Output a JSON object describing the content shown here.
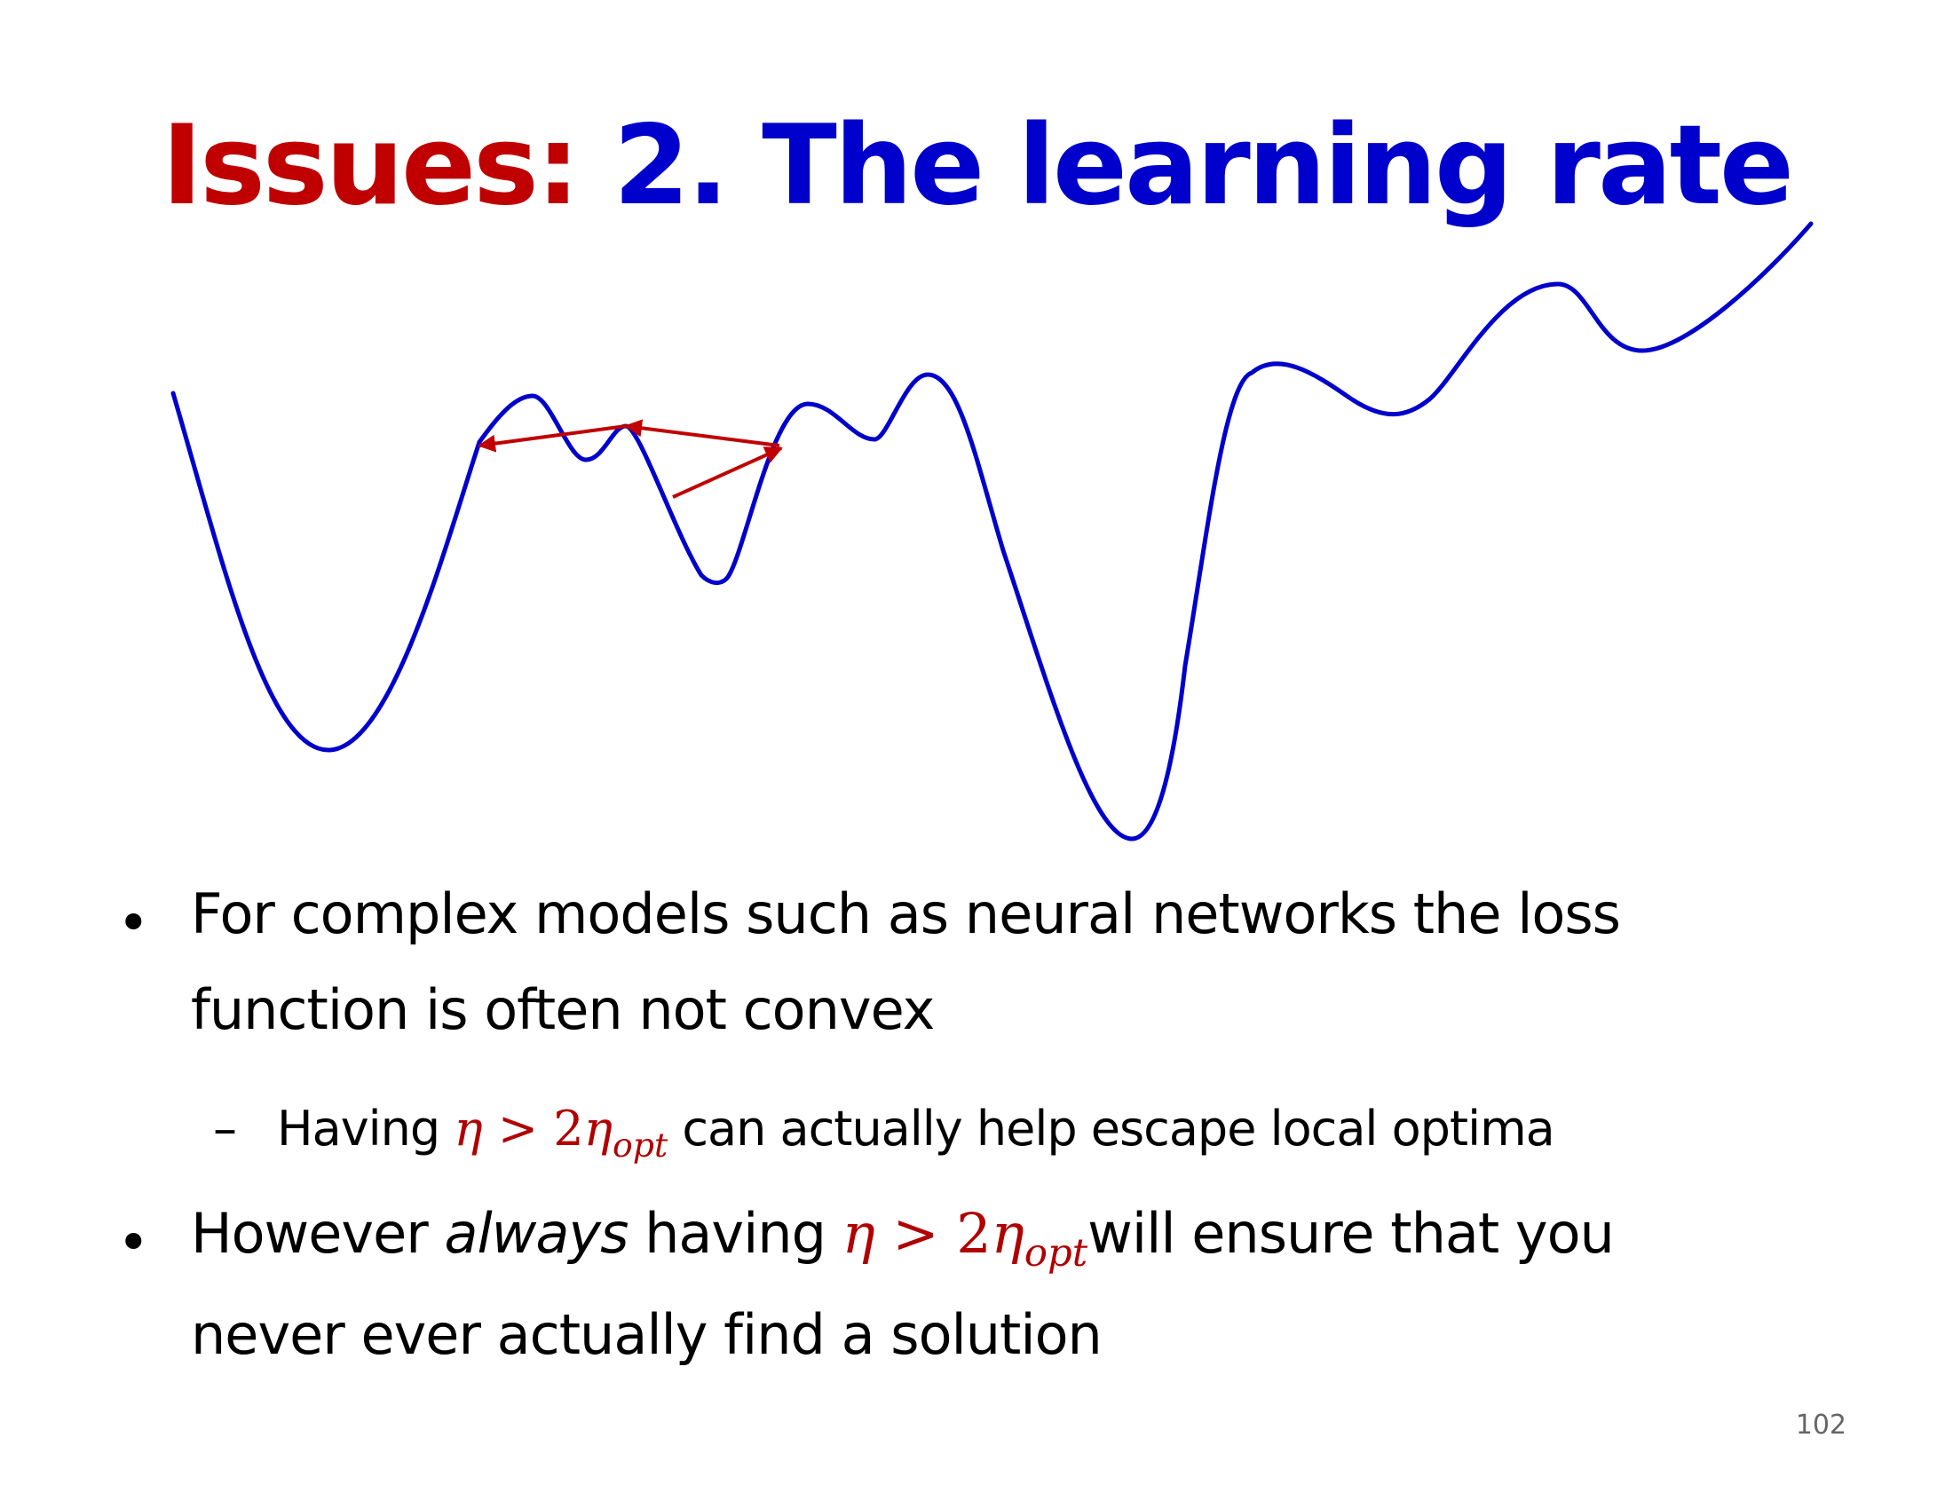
{
  "slide": {
    "title": {
      "prefix": "Issues:",
      "main": "2.  The learning rate"
    },
    "colors": {
      "title_prefix": "#c00000",
      "title_main": "#0000cc",
      "curve": "#0000cc",
      "arrows": "#c00000",
      "math": "#b00000"
    },
    "illustration": {
      "curve_icon": "non-convex-loss-curve",
      "arrow_icon": "red-step-arrows"
    },
    "bullets": [
      {
        "line1": "For complex models such as neural networks the loss",
        "line2": "function is often not convex",
        "sub": {
          "before": "Having",
          "math": {
            "eta": "η",
            "gt": ">",
            "two": "2",
            "eta2": "η",
            "subscript": "opt"
          },
          "after": "can actually help escape local optima"
        }
      },
      {
        "before": "However",
        "emph": "always",
        "mid": "having",
        "math": {
          "eta": "η",
          "gt": ">",
          "two": "2",
          "eta2": "η",
          "subscript": "opt"
        },
        "after": "will ensure that you",
        "line2": "never ever actually find a solution"
      }
    ],
    "page_number": "102"
  }
}
